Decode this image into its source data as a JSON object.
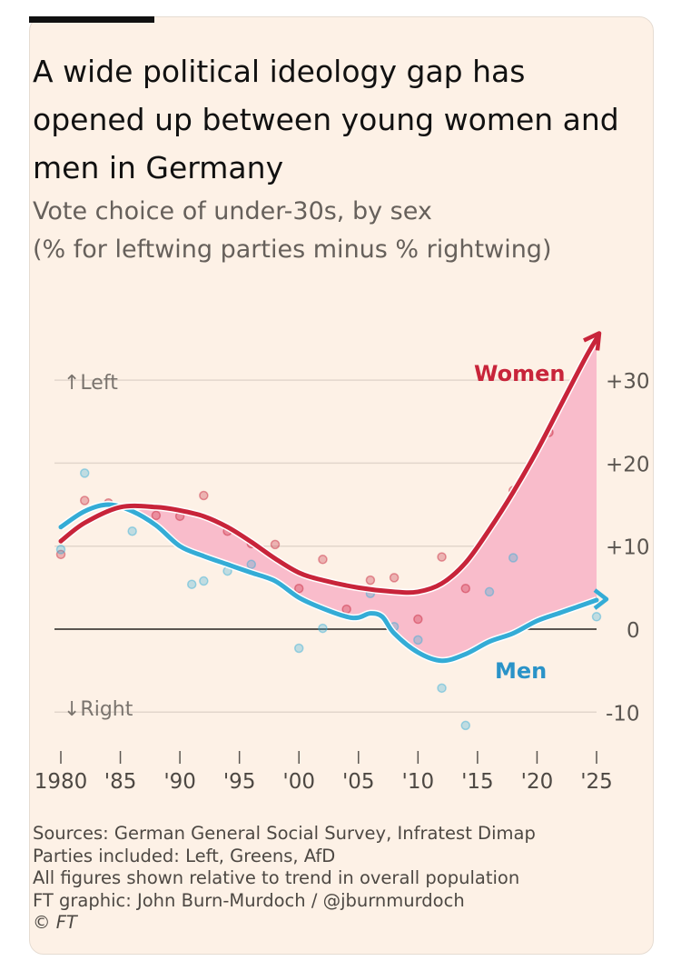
{
  "title": "A wide political ideology gap has opened up between young women and men in Germany",
  "subtitle_line1": "Vote choice of under-30s, by sex",
  "subtitle_line2": "(% for leftwing parties minus % rightwing)",
  "notes": [
    "Sources: German General Social Survey, Infratest Dimap",
    "Parties included: Left, Greens, AfD",
    "All figures shown relative to trend in overall population",
    "FT graphic: John Burn-Murdoch / @jburnmurdoch",
    "© FT"
  ],
  "colors": {
    "women": "#c8243a",
    "men": "#34acd6",
    "gap": "#f9bccb",
    "bg": "#fdf1e6"
  },
  "chart_data": {
    "type": "line",
    "title": "A wide political ideology gap has opened up between young women and men in Germany",
    "ylabel": "% for leftwing parties minus % rightwing",
    "xlim": [
      1980,
      2025
    ],
    "ylim": [
      -13,
      36
    ],
    "grid": true,
    "direction_labels": {
      "up": "Left",
      "down": "Right"
    },
    "x_ticks": [
      1980,
      1985,
      1990,
      1995,
      2000,
      2005,
      2010,
      2015,
      2020,
      2025
    ],
    "x_tick_labels": [
      "1980",
      "'85",
      "'90",
      "'95",
      "'00",
      "'05",
      "'10",
      "'15",
      "'20",
      "'25"
    ],
    "y_ticks": [
      30,
      20,
      10,
      0,
      -10
    ],
    "y_tick_labels": [
      "+30",
      "+20",
      "+10",
      "0",
      "-10"
    ],
    "series": [
      {
        "name": "Women",
        "trend": {
          "x": [
            1980,
            1982,
            1985,
            1988,
            1990,
            1992,
            1994,
            1996,
            1998,
            2000,
            2002,
            2005,
            2008,
            2010,
            2012,
            2014,
            2016,
            2018,
            2020,
            2022,
            2024,
            2025
          ],
          "y": [
            10.6,
            12.8,
            14.7,
            14.7,
            14.3,
            13.6,
            12.3,
            10.5,
            8.5,
            6.8,
            5.9,
            5.0,
            4.5,
            4.5,
            5.5,
            8.0,
            12.0,
            16.5,
            21.5,
            27.0,
            32.5,
            35.0
          ]
        },
        "points": {
          "x": [
            1980,
            1982,
            1984,
            1988,
            1990,
            1992,
            1994,
            1996,
            1998,
            2000,
            2002,
            2004,
            2006,
            2008,
            2010,
            2012,
            2014,
            2018,
            2021
          ],
          "y": [
            9.0,
            15.5,
            15.2,
            13.7,
            13.6,
            16.1,
            11.8,
            10.3,
            10.2,
            4.9,
            8.4,
            2.4,
            5.9,
            6.2,
            1.2,
            8.7,
            4.9,
            16.7,
            23.7
          ]
        }
      },
      {
        "name": "Men",
        "trend": {
          "x": [
            1980,
            1982,
            1984,
            1986,
            1988,
            1990,
            1992,
            1994,
            1996,
            1998,
            2000,
            2002,
            2004,
            2005,
            2006,
            2007,
            2008,
            2010,
            2012,
            2014,
            2016,
            2018,
            2020,
            2022,
            2024,
            2025
          ],
          "y": [
            12.3,
            14.2,
            15.0,
            14.2,
            12.5,
            10.0,
            8.8,
            7.8,
            6.8,
            5.8,
            3.8,
            2.5,
            1.5,
            1.4,
            1.9,
            1.5,
            -0.5,
            -2.8,
            -3.8,
            -3.0,
            -1.5,
            -0.5,
            1.0,
            2.0,
            3.0,
            3.5
          ]
        },
        "points": {
          "x": [
            1980,
            1982,
            1986,
            1991,
            1992,
            1994,
            1996,
            2000,
            2002,
            2006,
            2008,
            2010,
            2012,
            2014,
            2016,
            2018,
            2025
          ],
          "y": [
            9.6,
            18.8,
            11.8,
            5.4,
            5.8,
            7.0,
            7.8,
            -2.3,
            0.1,
            4.3,
            0.3,
            -1.3,
            -7.1,
            -11.6,
            4.5,
            8.6,
            1.5
          ]
        }
      }
    ]
  }
}
